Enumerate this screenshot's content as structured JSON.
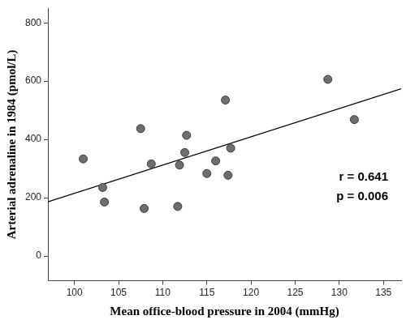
{
  "chart_data": {
    "type": "scatter",
    "x_label": "Mean office-blood pressure in 2004 (mmHg)",
    "y_label": "Arterial adrenaline in 1984 (pmol/L)",
    "annotations": [
      "r = 0.641",
      "p = 0.006"
    ],
    "series": [
      {
        "type": "scatter",
        "color": "#6e6e6e",
        "marker": "circle",
        "x": [
          101,
          103.2,
          103.4,
          107.5,
          107.9,
          108.7,
          111.7,
          111.9,
          112.5,
          112.7,
          115,
          116,
          117.1,
          117.4,
          117.7,
          128.7,
          131.7
        ],
        "values": [
          333,
          235,
          185,
          437,
          163,
          316,
          170,
          312,
          355,
          414,
          283,
          326,
          535,
          277,
          370,
          606,
          468
        ]
      },
      {
        "type": "line",
        "color": "#000000",
        "line_style": "solid",
        "x": [
          97,
          137
        ],
        "values": [
          186,
          574
        ]
      }
    ],
    "xlim": [
      97,
      137
    ],
    "xticks": [
      100,
      105,
      110,
      115,
      120,
      125,
      130,
      135
    ],
    "ylim": [
      -85,
      850
    ],
    "yticks": [
      0,
      200,
      400,
      600,
      800
    ],
    "grid": false
  }
}
